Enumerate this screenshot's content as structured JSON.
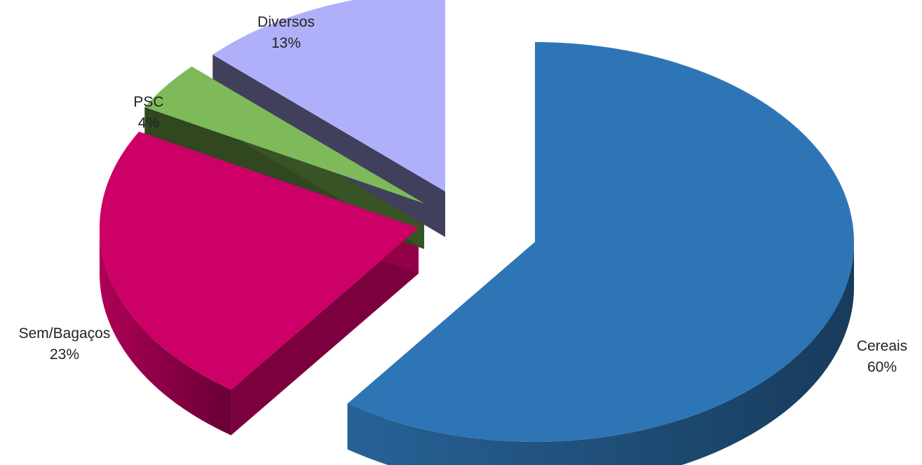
{
  "chart_data": {
    "type": "pie",
    "title": "",
    "style": "3d-exploded",
    "slices": [
      {
        "name": "Cereais",
        "value": 60,
        "label": "60%",
        "color": "#2E75B6",
        "side_color": "#1F4E79"
      },
      {
        "name": "Sem/Bagaços",
        "value": 23,
        "label": "23%",
        "color": "#CC0066",
        "side_color": "#8B0045"
      },
      {
        "name": "PSC",
        "value": 4,
        "label": "4%",
        "color": "#7FBA5A",
        "side_color": "#354F23"
      },
      {
        "name": "Diversos",
        "value": 13,
        "label": "13%",
        "color": "#B0B0FA",
        "side_color": "#474766"
      }
    ]
  }
}
